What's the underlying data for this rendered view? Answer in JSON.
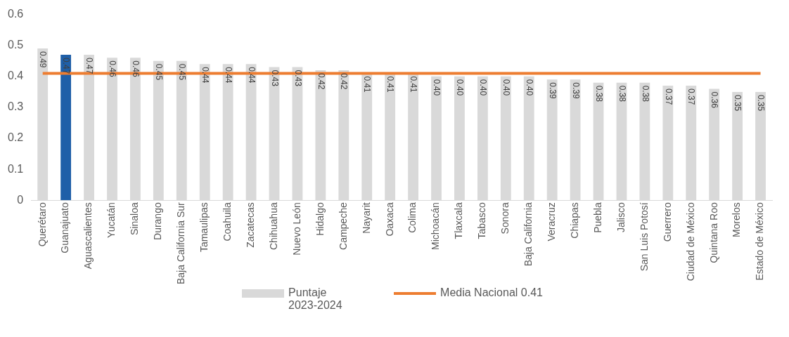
{
  "chart_data": {
    "type": "bar",
    "categories": [
      "Querétaro",
      "Guanajuato",
      "Aguascalientes",
      "Yucatán",
      "Sinaloa",
      "Durango",
      "Baja California Sur",
      "Tamaulipas",
      "Coahuila",
      "Zacatecas",
      "Chihuahua",
      "Nuevo León",
      "Hidalgo",
      "Campeche",
      "Nayarit",
      "Oaxaca",
      "Colima",
      "Michoacán",
      "Tlaxcala",
      "Tabasco",
      "Sonora",
      "Baja California",
      "Veracruz",
      "Chiapas",
      "Puebla",
      "Jalisco",
      "San Luis Potosí",
      "Guerrero",
      "Ciudad de México",
      "Quintana Roo",
      "Morelos",
      "Estado de México"
    ],
    "series": [
      {
        "name": "Puntaje 2023-2024",
        "value_labels": [
          "0.49",
          "0.47",
          "0.47",
          "0.46",
          "0.46",
          "0.45",
          "0.45",
          "0.44",
          "0.44",
          "0.44",
          "0.43",
          "0.43",
          "0.42",
          "0.42",
          "0.41",
          "0.41",
          "0.41",
          "0.40",
          "0.40",
          "0.40",
          "0.40",
          "0.40",
          "0.39",
          "0.39",
          "0.38",
          "0.38",
          "0.38",
          "0.37",
          "0.37",
          "0.36",
          "0.35",
          "0.35"
        ],
        "color": "#d9d9d9",
        "colors": [
          "#d9d9d9",
          "#1f5fa8",
          "#d9d9d9",
          "#d9d9d9",
          "#d9d9d9",
          "#d9d9d9",
          "#d9d9d9",
          "#d9d9d9",
          "#d9d9d9",
          "#d9d9d9",
          "#d9d9d9",
          "#d9d9d9",
          "#d9d9d9",
          "#d9d9d9",
          "#d9d9d9",
          "#d9d9d9",
          "#d9d9d9",
          "#d9d9d9",
          "#d9d9d9",
          "#d9d9d9",
          "#d9d9d9",
          "#d9d9d9",
          "#d9d9d9",
          "#d9d9d9",
          "#d9d9d9",
          "#d9d9d9",
          "#d9d9d9",
          "#d9d9d9",
          "#d9d9d9",
          "#d9d9d9",
          "#d9d9d9",
          "#d9d9d9"
        ],
        "values": [
          0.49,
          0.47,
          0.47,
          0.46,
          0.46,
          0.45,
          0.45,
          0.44,
          0.44,
          0.44,
          0.43,
          0.43,
          0.42,
          0.42,
          0.41,
          0.41,
          0.41,
          0.4,
          0.4,
          0.4,
          0.4,
          0.4,
          0.39,
          0.39,
          0.38,
          0.38,
          0.38,
          0.37,
          0.37,
          0.36,
          0.35,
          0.35
        ]
      },
      {
        "name": "Media Nacional 0.41",
        "type": "line",
        "color": "#ed7d31",
        "values": [
          0.41,
          0.41,
          0.41,
          0.41,
          0.41,
          0.41,
          0.41,
          0.41,
          0.41,
          0.41,
          0.41,
          0.41,
          0.41,
          0.41,
          0.41,
          0.41,
          0.41,
          0.41,
          0.41,
          0.41,
          0.41,
          0.41,
          0.41,
          0.41,
          0.41,
          0.41,
          0.41,
          0.41,
          0.41,
          0.41,
          0.41,
          0.41
        ]
      }
    ],
    "ylim": [
      0,
      0.6
    ],
    "yticks": [
      0,
      0.1,
      0.2,
      0.3,
      0.4,
      0.5,
      0.6
    ],
    "grid": false,
    "legend": "bottom",
    "marker": "none"
  }
}
